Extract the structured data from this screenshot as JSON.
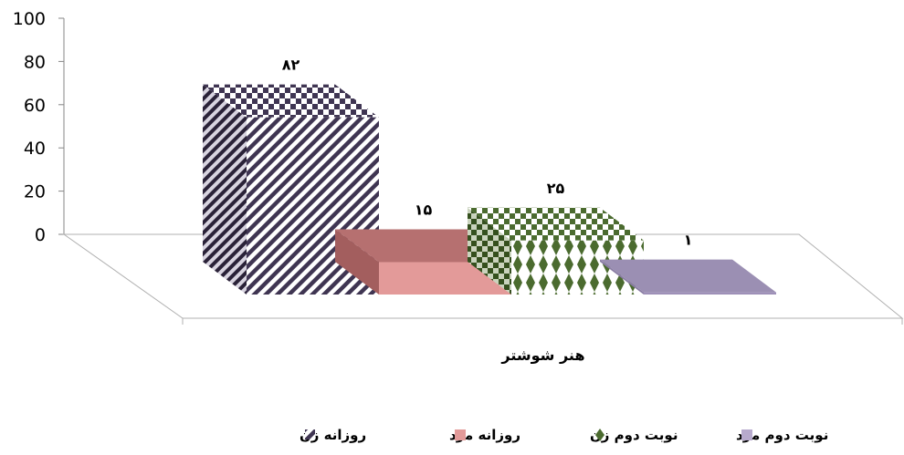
{
  "chart_data": {
    "type": "bar",
    "categories": [
      "هنر شوشتر"
    ],
    "series": [
      {
        "name": "روزانه زن",
        "values": [
          82
        ],
        "value_label": "۸۲",
        "color": "#3f3552"
      },
      {
        "name": "روزانه مرد",
        "values": [
          15
        ],
        "value_label": "۱۵",
        "color": "#e39a99"
      },
      {
        "name": "نوبت دوم زن",
        "values": [
          25
        ],
        "value_label": "۲۵",
        "color": "#4b6b2f"
      },
      {
        "name": "نوبت دوم مرد",
        "values": [
          1
        ],
        "value_label": "۱",
        "color": "#b7aacd"
      }
    ],
    "y_ticks": [
      "0",
      "20",
      "40",
      "60",
      "80",
      "100"
    ],
    "ylim": [
      0,
      100
    ],
    "title": "",
    "xlabel": "",
    "ylabel": "",
    "legend_position": "bottom",
    "grid": false,
    "three_d": true
  }
}
